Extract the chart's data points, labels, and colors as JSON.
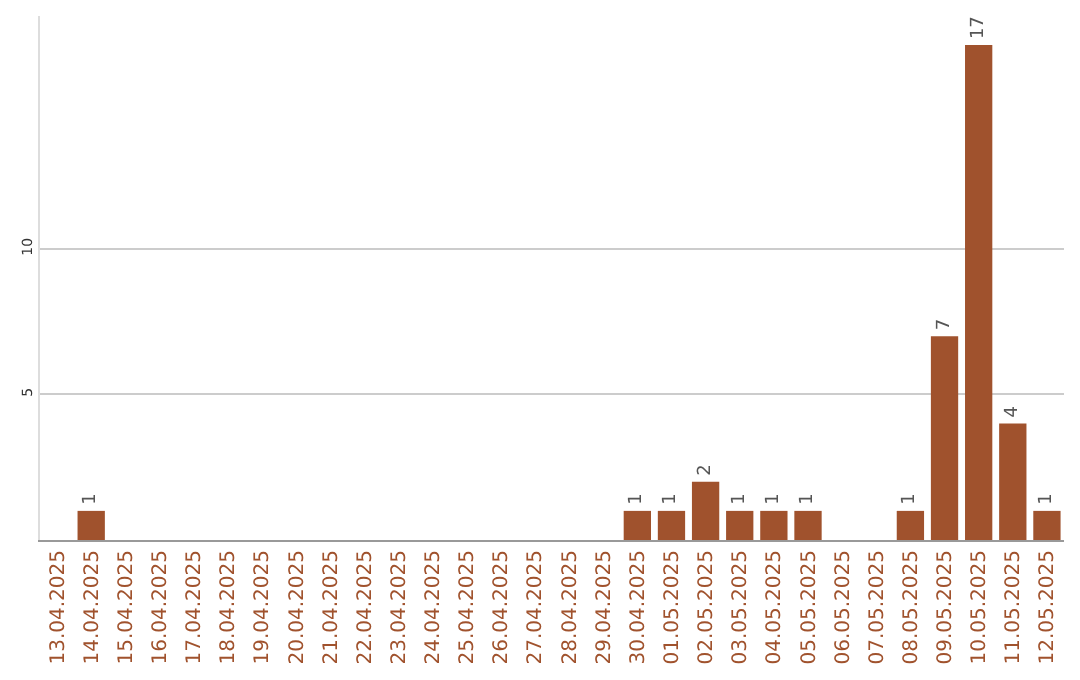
{
  "chart_data": {
    "type": "bar",
    "categories": [
      "13.04.2025",
      "14.04.2025",
      "15.04.2025",
      "16.04.2025",
      "17.04.2025",
      "18.04.2025",
      "19.04.2025",
      "20.04.2025",
      "21.04.2025",
      "22.04.2025",
      "23.04.2025",
      "24.04.2025",
      "25.04.2025",
      "26.04.2025",
      "27.04.2025",
      "28.04.2025",
      "29.04.2025",
      "30.04.2025",
      "01.05.2025",
      "02.05.2025",
      "03.05.2025",
      "04.05.2025",
      "05.05.2025",
      "06.05.2025",
      "07.05.2025",
      "08.05.2025",
      "09.05.2025",
      "10.05.2025",
      "11.05.2025",
      "12.05.2025"
    ],
    "values": [
      0,
      1,
      0,
      0,
      0,
      0,
      0,
      0,
      0,
      0,
      0,
      0,
      0,
      0,
      0,
      0,
      0,
      1,
      1,
      2,
      1,
      1,
      1,
      0,
      0,
      1,
      7,
      17,
      4,
      1
    ],
    "value_labels": [
      null,
      "1",
      null,
      null,
      null,
      null,
      null,
      null,
      null,
      null,
      null,
      null,
      null,
      null,
      null,
      null,
      null,
      "1",
      "1",
      "2",
      "1",
      "1",
      "1",
      null,
      null,
      "1",
      "7",
      "17",
      "4",
      "1"
    ],
    "color": "#a0522d",
    "ylim": [
      0,
      18
    ],
    "yticks": [
      5,
      10
    ],
    "grid": "y"
  }
}
